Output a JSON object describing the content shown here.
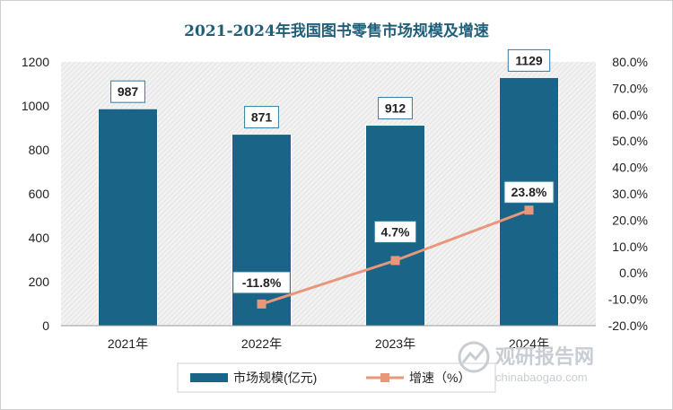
{
  "chart_data": {
    "type": "bar",
    "title": "2021-2024年我国图书零售市场规模及增速",
    "categories": [
      "2021年",
      "2022年",
      "2023年",
      "2024年"
    ],
    "series": [
      {
        "name": "市场规模(亿元)",
        "type": "bar",
        "axis": "left",
        "values": [
          987,
          871,
          912,
          1129
        ],
        "labels": [
          "987",
          "871",
          "912",
          "1129"
        ],
        "color": "#1a6488"
      },
      {
        "name": "增速（%）",
        "type": "line",
        "axis": "right",
        "values": [
          null,
          -11.8,
          4.7,
          23.8
        ],
        "labels": [
          null,
          "-11.8%",
          "4.7%",
          "23.8%"
        ],
        "color": "#e8977a"
      }
    ],
    "y_left": {
      "ticks": [
        "0",
        "200",
        "400",
        "600",
        "800",
        "1000",
        "1200"
      ],
      "ylim": [
        0,
        1200
      ]
    },
    "y_right": {
      "ticks": [
        "-20.0%",
        "-10.0%",
        "0.0%",
        "10.0%",
        "20.0%",
        "30.0%",
        "40.0%",
        "50.0%",
        "60.0%",
        "70.0%",
        "80.0%"
      ],
      "ylim": [
        -20,
        80
      ]
    },
    "legend": "bottom",
    "grid": false,
    "plot_background": "hatched-light-gray"
  },
  "watermark": {
    "text": "观研报告网",
    "url": "chinabaogao.com",
    "icon": "logo-icon"
  }
}
